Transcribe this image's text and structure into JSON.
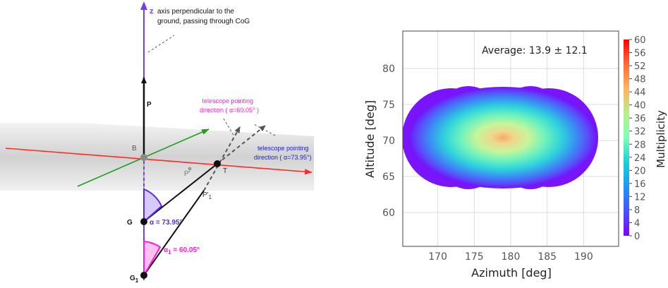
{
  "diagram": {
    "z_label": "z",
    "z_annotation": [
      "axis perpendicular to the",
      "ground, passing through CoG"
    ],
    "P_label": "P",
    "B_label": "B",
    "T_label": "T",
    "Pprime_label": "P'",
    "P1prime_label": "P'",
    "P1prime_sub": "1",
    "G_label": "G",
    "G1_label": "G",
    "G1_sub": "1",
    "alpha_label": "α = 73.95°",
    "alpha1_prefix": "α",
    "alpha1_sub": "1",
    "alpha1_suffix": " = 60.05°",
    "telescope1": [
      "telescope pointing",
      "direction ( α=60.05° )"
    ],
    "telescope2": [
      "telescope pointing",
      "direction ( α=73.95°)"
    ],
    "colors": {
      "z_axis": "#7a3cf0",
      "red_axis": "#ff2a2a",
      "green_axis": "#1f9e1f",
      "magenta": "#ff1cd2",
      "blue_text": "#2222cc",
      "alpha": "#5b2ae0"
    }
  },
  "chart_data": {
    "type": "heatmap",
    "title": "Average: 13.9 ± 12.1",
    "xlabel": "Azimuth [deg]",
    "ylabel": "Altitude [deg]",
    "xlim": [
      165.2,
      194.8
    ],
    "ylim": [
      55.3,
      85.2
    ],
    "xticks": [
      "170",
      "175",
      "180",
      "185",
      "190"
    ],
    "yticks": [
      "60",
      "65",
      "70",
      "75",
      "80"
    ],
    "colorbar_label": "Multiplicity",
    "colorbar_ticks": [
      "0",
      "4",
      "8",
      "12",
      "16",
      "20",
      "24",
      "28",
      "32",
      "36",
      "40",
      "44",
      "48",
      "52",
      "56",
      "60"
    ],
    "clim": [
      0,
      60
    ],
    "grid": true,
    "lobes": [
      {
        "center_az": 175,
        "center_alt": 70,
        "radius": 6.0
      },
      {
        "center_az": 185,
        "center_alt": 70,
        "radius": 6.0
      },
      {
        "center_az": 180,
        "center_alt": 70,
        "radius": 6.0
      }
    ],
    "peak_value": 60,
    "peak_location": [
      180,
      70
    ]
  }
}
